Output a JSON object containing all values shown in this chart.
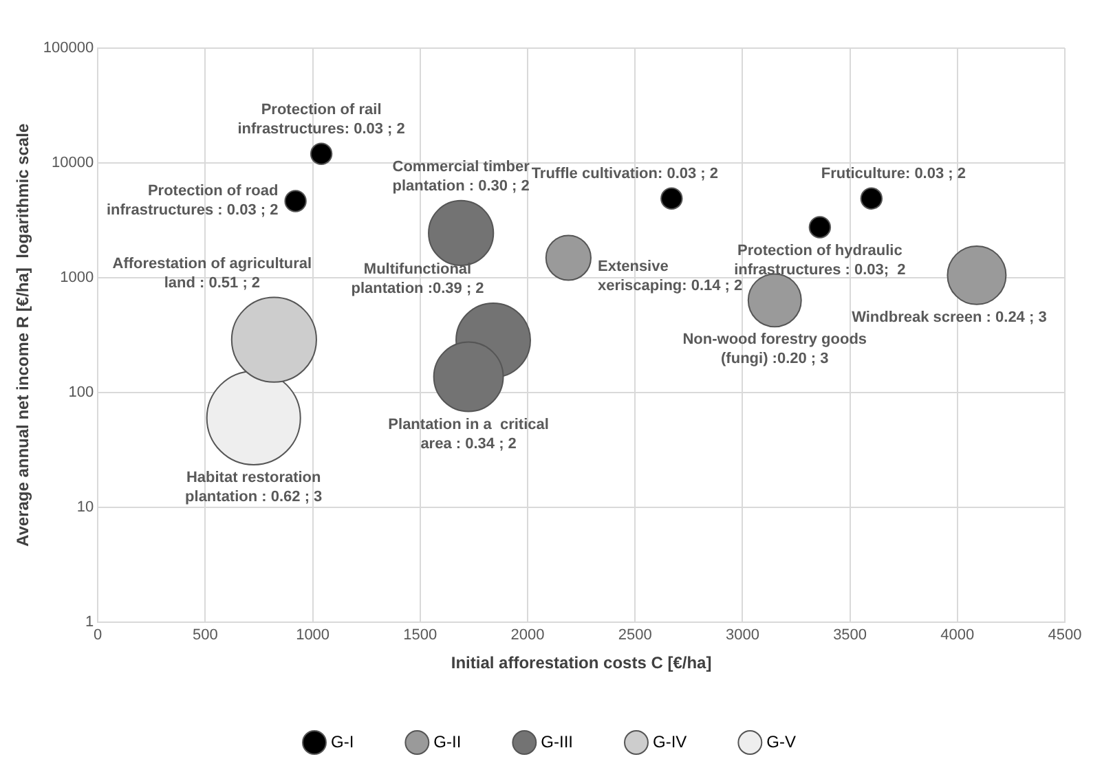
{
  "chart_data": {
    "type": "bubble",
    "xlabel": "Initial afforestation costs C [€/ha]",
    "ylabel": "Average annual net income R [€/ha]  logarithmic scale",
    "xlim": [
      0,
      4500
    ],
    "xticks": [
      0,
      500,
      1000,
      1500,
      2000,
      2500,
      3000,
      3500,
      4000,
      4500
    ],
    "ylim": [
      1,
      100000
    ],
    "yticks": [
      1,
      10,
      100,
      1000,
      10000,
      100000
    ],
    "log": "y",
    "grid": true,
    "legend": "bottom",
    "series": [
      {
        "name": "G-I",
        "color": "#000000",
        "x": [
          1040,
          920,
          2670,
          3600,
          3360
        ],
        "values": [
          12000,
          4650,
          4900,
          4900,
          2750
        ],
        "sizes": [
          0.05,
          0.05,
          0.05,
          0.05,
          0.05
        ],
        "value_labels": [
          "Protection of rail\ninfrastructures: 0.03 ; 2",
          "Protection of road\ninfrastructures : 0.03 ; 2",
          "Truffle cultivation: 0.03 ; 2",
          "Fruticulture: 0.03 ; 2",
          "Protection of hydraulic\ninfrastructures : 0.03;  2"
        ]
      },
      {
        "name": "G-II",
        "color": "#9a9a9a",
        "x": [
          2190,
          3150,
          4090
        ],
        "values": [
          1490,
          635,
          1050
        ],
        "sizes": [
          0.23,
          0.32,
          0.39
        ],
        "value_labels": [
          "Extensive\nxeriscaping: 0.14 ; 2",
          "Non-wood forestry goods\n(fungi) :0.20 ; 3",
          "Windbreak screen : 0.24 ; 3"
        ]
      },
      {
        "name": "G-III",
        "color": "#737373",
        "x": [
          1690,
          1840,
          1725
        ],
        "values": [
          2450,
          285,
          137
        ],
        "sizes": [
          0.48,
          0.63,
          0.55
        ],
        "value_labels": [
          "Commercial timber\nplantation : 0.30 ; 2",
          "Multifunctional\nplantation :0.39 ; 2",
          "Plantation in a  critical\narea : 0.34 ; 2"
        ]
      },
      {
        "name": "G-IV",
        "color": "#cdcdcd",
        "x": [
          820
        ],
        "values": [
          288
        ],
        "sizes": [
          0.82
        ],
        "value_labels": [
          "Afforestation of agricultural\nland : 0.51 ; 2"
        ]
      },
      {
        "name": "G-V",
        "color": "#eeeeee",
        "x": [
          725
        ],
        "values": [
          60
        ],
        "sizes": [
          1
        ],
        "value_labels": [
          "Habitat restoration\nplantation : 0.62 ; 3"
        ]
      }
    ]
  }
}
